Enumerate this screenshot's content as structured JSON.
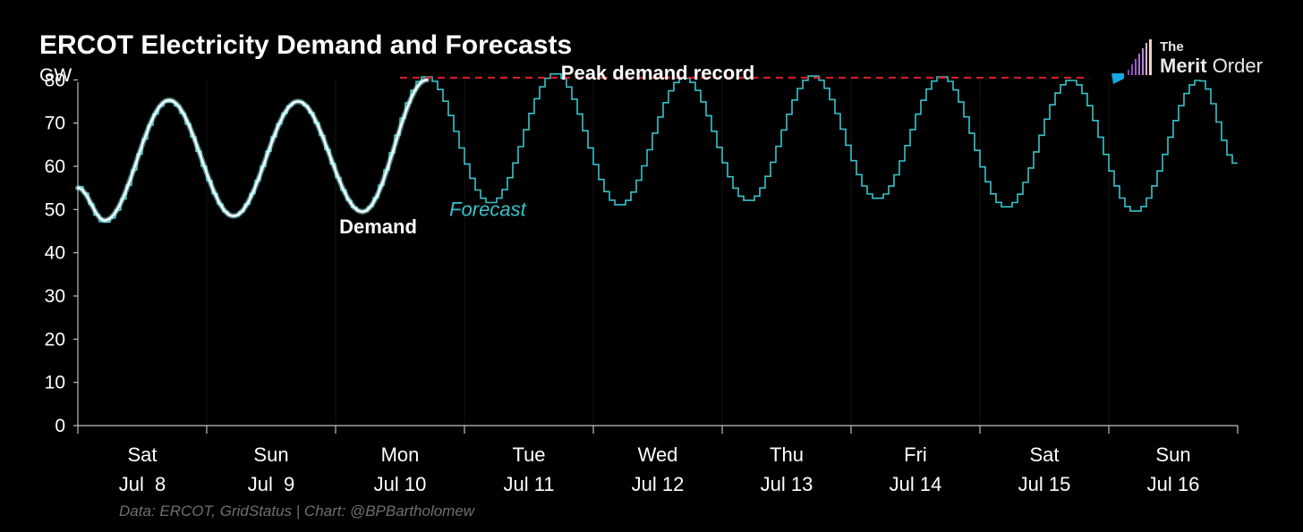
{
  "title": "ERCOT Electricity Demand and Forecasts",
  "source_note": "Data: ERCOT, GridStatus | Chart: @BPBartholomew",
  "logo": {
    "line1": "The",
    "word1": "Merit",
    "word2": "Order"
  },
  "colors": {
    "background": "#000000",
    "forecast": "#36c4cc",
    "demand": "#ffffff",
    "demand_glow": "#8ff0f0",
    "peak_line": "#e0202a",
    "axis": "#bfbfbf"
  },
  "chart_data": {
    "type": "line",
    "title": "ERCOT Electricity Demand and Forecasts",
    "ylabel": "GW",
    "xlabel": "",
    "ylim": [
      0,
      84
    ],
    "xlim": [
      0,
      9
    ],
    "yticks": [
      0,
      10,
      20,
      30,
      40,
      50,
      60,
      70,
      80
    ],
    "grid": false,
    "categories": [
      {
        "day": "Sat",
        "date": "Jul  8"
      },
      {
        "day": "Sun",
        "date": "Jul  9"
      },
      {
        "day": "Mon",
        "date": "Jul 10"
      },
      {
        "day": "Tue",
        "date": "Jul 11"
      },
      {
        "day": "Wed",
        "date": "Jul 12"
      },
      {
        "day": "Thu",
        "date": "Jul 13"
      },
      {
        "day": "Fri",
        "date": "Jul 14"
      },
      {
        "day": "Sat",
        "date": "Jul 15"
      },
      {
        "day": "Sun",
        "date": "Jul 16"
      }
    ],
    "forecast_daily": [
      {
        "day": 0,
        "start": 55.5,
        "min": 47.0,
        "max": 75.0
      },
      {
        "day": 1,
        "min": 48.5,
        "max": 75.0
      },
      {
        "day": 2,
        "min": 49.5,
        "max": 80.8
      },
      {
        "day": 3,
        "min": 51.5,
        "max": 81.5
      },
      {
        "day": 4,
        "min": 51.0,
        "max": 80.5
      },
      {
        "day": 5,
        "min": 52.0,
        "max": 81.0
      },
      {
        "day": 6,
        "min": 52.5,
        "max": 80.8
      },
      {
        "day": 7,
        "min": 50.5,
        "max": 80.0
      },
      {
        "day": 8,
        "min": 49.5,
        "max": 80.0,
        "end": 60.5
      }
    ],
    "demand_daily": [
      {
        "day": 0,
        "start": 55.0,
        "min": 47.5,
        "max": 75.3
      },
      {
        "day": 1,
        "min": 48.5,
        "max": 75.0
      },
      {
        "day": 2,
        "min": 49.5,
        "max": 80.0,
        "end_hour": 17
      }
    ],
    "series": [
      {
        "name": "Forecast",
        "style": "hourly step",
        "label_at_x": 3.18,
        "label_at_y": 48.5
      },
      {
        "name": "Demand",
        "style": "smooth line",
        "label_at_x": 2.33,
        "label_at_y": 44.5
      }
    ],
    "peak_record": {
      "label": "Peak demand record",
      "value": 80.5,
      "x_start": 2.5,
      "x_end": 7.85
    }
  }
}
